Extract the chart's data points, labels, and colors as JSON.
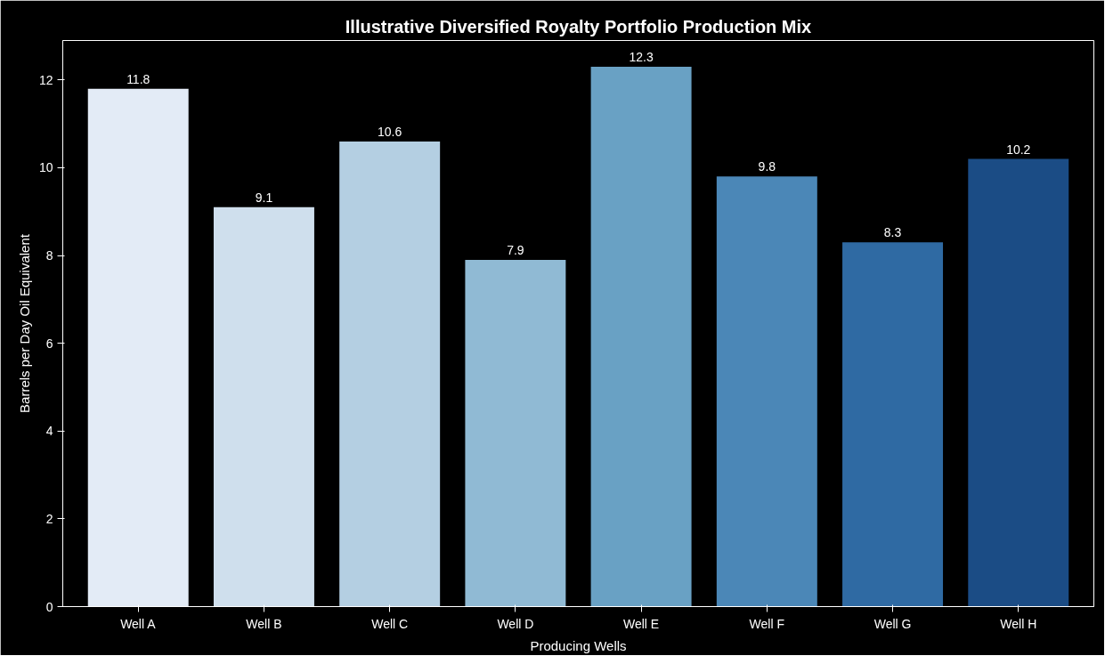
{
  "chart_data": {
    "type": "bar",
    "title": "Illustrative Diversified Royalty Portfolio Production Mix",
    "xlabel": "Producing Wells",
    "ylabel": "Barrels per Day Oil Equivalent",
    "categories": [
      "Well A",
      "Well B",
      "Well C",
      "Well D",
      "Well E",
      "Well F",
      "Well G",
      "Well H"
    ],
    "values": [
      11.8,
      9.1,
      10.6,
      7.9,
      12.3,
      9.8,
      8.3,
      10.2
    ],
    "colors": [
      "#e3ebf6",
      "#cfdfed",
      "#b4cfe2",
      "#90bad4",
      "#69a1c4",
      "#4b87b7",
      "#2f6aa3",
      "#1b4c85"
    ],
    "ylim": [
      0,
      12.9
    ],
    "yticks": [
      0,
      2,
      4,
      6,
      8,
      10,
      12
    ],
    "data_labels": true,
    "grid": false
  }
}
